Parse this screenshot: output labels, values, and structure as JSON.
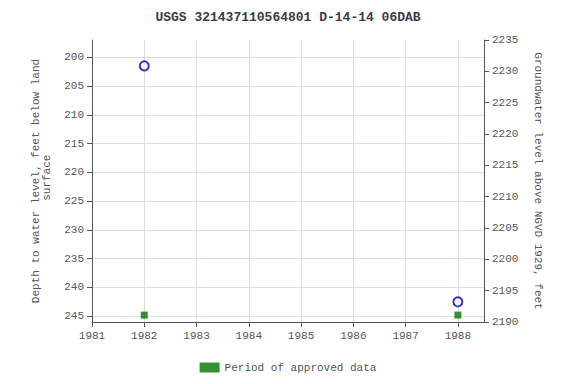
{
  "chart_data": {
    "type": "scatter",
    "title": "USGS 321437110564801 D-14-14 06DAB",
    "ylabel": "Depth to water level, feet below land\n surface",
    "y2label": "Groundwater level above NGVD 1929, feet",
    "xlim": [
      1981,
      1988.5
    ],
    "xticks": [
      1981,
      1982,
      1983,
      1984,
      1985,
      1986,
      1987,
      1988
    ],
    "ylim": [
      246,
      197
    ],
    "yticks": [
      200,
      205,
      210,
      215,
      220,
      225,
      230,
      235,
      240,
      245
    ],
    "y2lim": [
      2190,
      2235
    ],
    "y2ticks": [
      2235,
      2230,
      2225,
      2220,
      2215,
      2210,
      2205,
      2200,
      2195,
      2190
    ],
    "grid": true,
    "legend": "bottom",
    "series": [
      {
        "color": "#0000bb",
        "marker": "ring",
        "x": [
          1982.0,
          1988.0
        ],
        "values": [
          201.5,
          242.5
        ]
      },
      {
        "name": "Period of approved data",
        "color": "#007700",
        "marker": "square",
        "x": [
          1982.0,
          1988.0
        ],
        "values": [
          244.8,
          244.8
        ]
      }
    ]
  }
}
